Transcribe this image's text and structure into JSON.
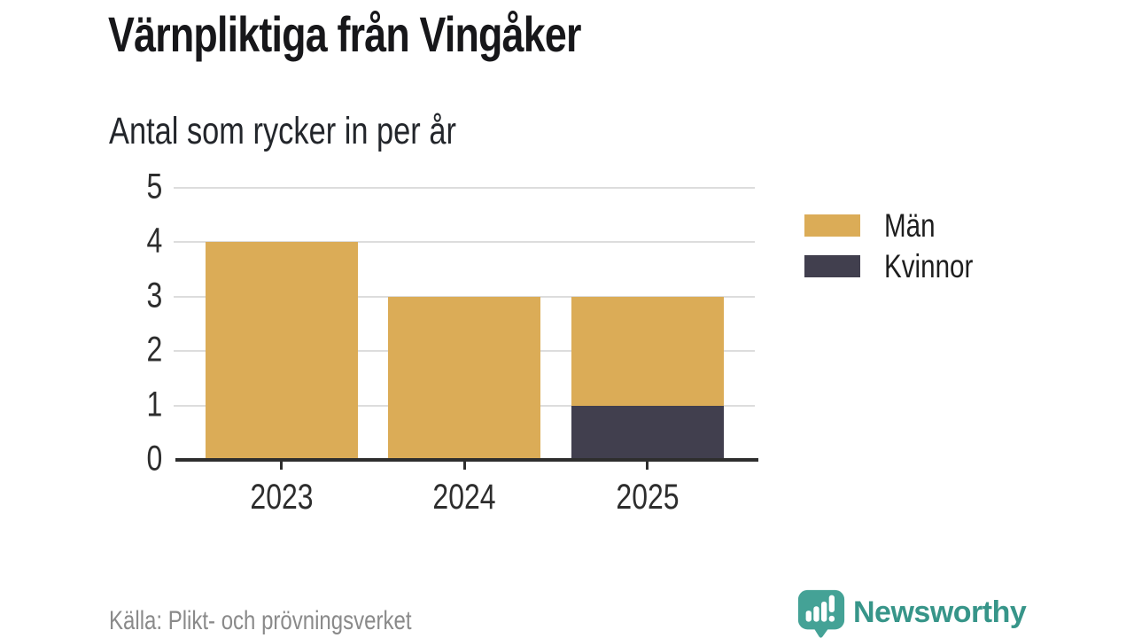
{
  "header": {
    "title": "Värnpliktiga från Vingåker",
    "subtitle": "Antal som rycker in per år"
  },
  "chart_data": {
    "type": "bar",
    "stacked": true,
    "title": "Värnpliktiga från Vingåker",
    "subtitle": "Antal som rycker in per år",
    "categories": [
      "2023",
      "2024",
      "2025"
    ],
    "series": [
      {
        "name": "Män",
        "color": "#DBAC57",
        "values": [
          4,
          3,
          2
        ]
      },
      {
        "name": "Kvinnor",
        "color": "#413F4E",
        "values": [
          0,
          0,
          1
        ]
      }
    ],
    "stack_order_bottom_up": [
      "Kvinnor",
      "Män"
    ],
    "totals": [
      4,
      3,
      3
    ],
    "xlabel": "",
    "ylabel": "",
    "ylim": [
      0,
      5
    ],
    "yticks": [
      0,
      1,
      2,
      3,
      4,
      5
    ],
    "grid": true,
    "legend_position": "right"
  },
  "footer": {
    "source": "Källa: Plikt- och prövningsverket",
    "brand": "Newsworthy"
  },
  "colors": {
    "men": "#DBAC57",
    "women": "#413F4E",
    "brand_teal": "#44A296",
    "brand_text_teal": "#379589",
    "gridline": "#DDDDDD",
    "axis": "#2E2E2E"
  }
}
